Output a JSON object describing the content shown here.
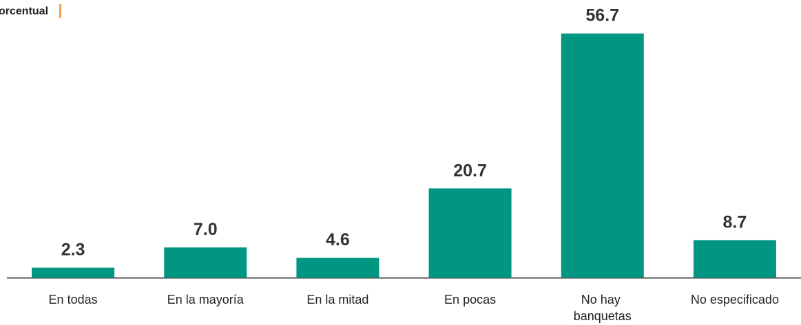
{
  "chart_data": {
    "type": "bar",
    "title": "orcentual",
    "categories": [
      "En todas",
      "En la mayoría",
      "En la mitad",
      "En pocas",
      "No hay banquetas",
      "No especificado"
    ],
    "values": [
      2.3,
      7.0,
      4.6,
      20.7,
      56.7,
      8.7
    ],
    "value_labels": [
      "2.3",
      "7.0",
      "4.6",
      "20.7",
      "56.7",
      "8.7"
    ],
    "color": "#009682",
    "ylim": [
      0,
      60
    ]
  }
}
